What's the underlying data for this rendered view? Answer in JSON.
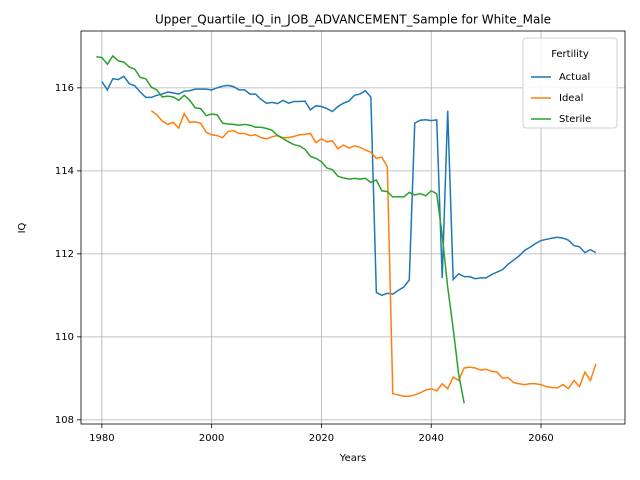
{
  "chart_data": {
    "type": "line",
    "title": "Upper_Quartile_IQ_in_JOB_ADVANCEMENT_Sample for White_Male",
    "xlabel": "Years",
    "ylabel": "IQ",
    "legend_title": "Fertility",
    "legend_loc": "upper right",
    "grid": true,
    "xlim": [
      1976.2,
      2075.3
    ],
    "xticks": [
      1980,
      2000,
      2020,
      2040,
      2060
    ],
    "ylim": [
      107.9,
      117.37
    ],
    "yticks": [
      108,
      110,
      112,
      114,
      116
    ],
    "x": [
      1979,
      1980,
      1981,
      1982,
      1983,
      1984,
      1985,
      1986,
      1987,
      1988,
      1989,
      1990,
      1991,
      1992,
      1993,
      1994,
      1995,
      1996,
      1997,
      1998,
      1999,
      2000,
      2001,
      2002,
      2003,
      2004,
      2005,
      2006,
      2007,
      2008,
      2009,
      2010,
      2011,
      2012,
      2013,
      2014,
      2015,
      2016,
      2017,
      2018,
      2019,
      2020,
      2021,
      2022,
      2023,
      2024,
      2025,
      2026,
      2027,
      2028,
      2029,
      2030,
      2031,
      2032,
      2033,
      2034,
      2035,
      2036,
      2037,
      2038,
      2039,
      2040,
      2041,
      2042,
      2043,
      2044,
      2045,
      2046,
      2047,
      2048,
      2049,
      2050,
      2051,
      2052,
      2053,
      2054,
      2055,
      2056,
      2057,
      2058,
      2059,
      2060,
      2061,
      2062,
      2063,
      2064,
      2065,
      2066,
      2067,
      2068,
      2069,
      2070
    ],
    "series": [
      {
        "name": "Actual",
        "color": "#1f77b4",
        "values": [
          null,
          116.15,
          115.95,
          116.22,
          116.2,
          116.28,
          116.1,
          116.05,
          115.9,
          115.77,
          115.77,
          115.82,
          115.85,
          115.9,
          115.88,
          115.85,
          115.92,
          115.93,
          115.97,
          115.97,
          115.97,
          115.95,
          116.0,
          116.04,
          116.06,
          116.03,
          115.95,
          115.95,
          115.85,
          115.85,
          115.72,
          115.63,
          115.65,
          115.62,
          115.7,
          115.63,
          115.67,
          115.67,
          115.68,
          115.47,
          115.57,
          115.55,
          115.5,
          115.43,
          115.55,
          115.63,
          115.68,
          115.82,
          115.85,
          115.93,
          115.78,
          111.07,
          111.0,
          111.05,
          111.03,
          111.12,
          111.2,
          111.37,
          115.15,
          115.22,
          115.23,
          115.21,
          115.23,
          111.42,
          115.45,
          111.38,
          111.52,
          111.45,
          111.45,
          111.4,
          111.42,
          111.42,
          111.5,
          111.56,
          111.62,
          111.75,
          111.85,
          111.95,
          112.08,
          112.16,
          112.25,
          112.32,
          112.35,
          112.38,
          112.4,
          112.38,
          112.33,
          112.2,
          112.17,
          112.03,
          112.1,
          112.03
        ]
      },
      {
        "name": "Ideal",
        "color": "#ff7f0e",
        "values": [
          null,
          null,
          null,
          null,
          null,
          null,
          null,
          null,
          null,
          null,
          115.45,
          115.35,
          115.2,
          115.12,
          115.17,
          115.03,
          115.38,
          115.17,
          115.18,
          115.15,
          114.93,
          114.87,
          114.85,
          114.8,
          114.95,
          114.97,
          114.9,
          114.9,
          114.85,
          114.87,
          114.8,
          114.77,
          114.82,
          114.85,
          114.8,
          114.8,
          114.83,
          114.87,
          114.88,
          114.9,
          114.68,
          114.77,
          114.7,
          114.72,
          114.53,
          114.62,
          114.55,
          114.6,
          114.57,
          114.5,
          114.45,
          114.3,
          114.33,
          114.1,
          108.63,
          108.6,
          108.57,
          108.57,
          108.6,
          108.65,
          108.72,
          108.75,
          108.7,
          108.87,
          108.75,
          109.03,
          108.95,
          109.25,
          109.27,
          109.25,
          109.2,
          109.22,
          109.17,
          109.15,
          109.0,
          109.02,
          108.9,
          108.87,
          108.85,
          108.87,
          108.87,
          108.85,
          108.8,
          108.78,
          108.77,
          108.85,
          108.75,
          108.95,
          108.8,
          109.15,
          108.95,
          109.35
        ]
      },
      {
        "name": "Sterile",
        "color": "#2ca02c",
        "values": [
          116.75,
          116.73,
          116.57,
          116.77,
          116.65,
          116.62,
          116.5,
          116.45,
          116.25,
          116.22,
          116.02,
          115.95,
          115.78,
          115.8,
          115.78,
          115.7,
          115.82,
          115.7,
          115.52,
          115.5,
          115.33,
          115.37,
          115.35,
          115.15,
          115.13,
          115.12,
          115.1,
          115.12,
          115.1,
          115.05,
          115.05,
          115.02,
          114.98,
          114.85,
          114.78,
          114.7,
          114.63,
          114.6,
          114.52,
          114.35,
          114.3,
          114.22,
          114.07,
          114.03,
          113.87,
          113.83,
          113.8,
          113.82,
          113.8,
          113.82,
          113.72,
          113.78,
          113.52,
          113.5,
          113.37,
          113.38,
          113.37,
          113.48,
          113.42,
          113.45,
          113.4,
          113.52,
          113.45,
          112.45,
          111.2,
          110.2,
          109.1,
          108.4,
          null,
          null,
          null,
          null,
          null,
          null,
          null,
          null,
          null,
          null,
          null,
          null,
          null,
          null,
          null,
          null,
          null,
          null,
          null,
          null,
          null,
          null,
          null,
          null
        ]
      }
    ]
  }
}
